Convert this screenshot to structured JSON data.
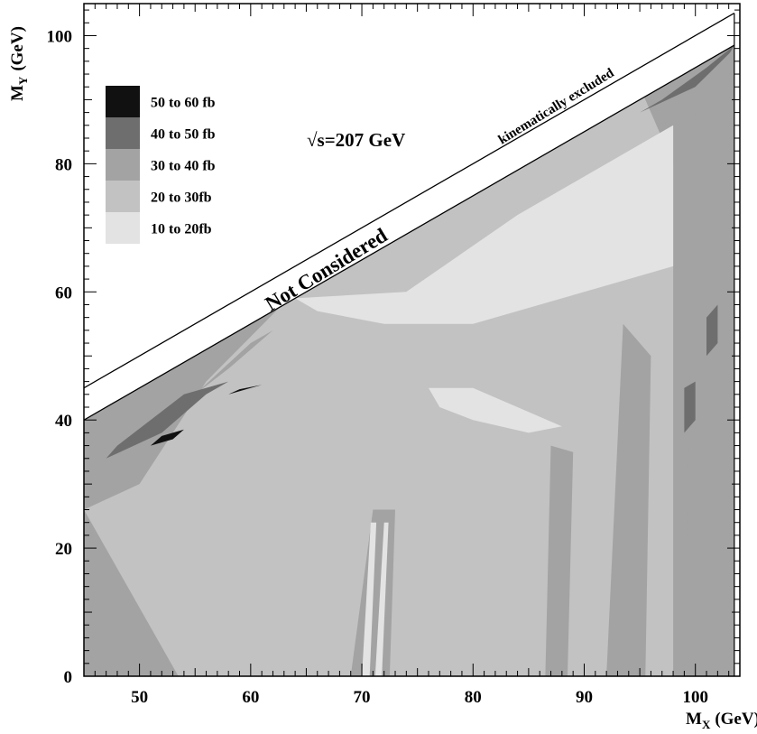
{
  "chart_data": {
    "type": "heatmap",
    "title": "",
    "xlabel_main": "M",
    "xlabel_sub": "X",
    "xlabel_unit": "(GeV)",
    "ylabel_main": "M",
    "ylabel_sub": "Y",
    "ylabel_unit": "(GeV)",
    "xlim": [
      45,
      104
    ],
    "ylim": [
      0,
      105
    ],
    "xticks": [
      50,
      60,
      70,
      80,
      90,
      100
    ],
    "yticks": [
      0,
      20,
      40,
      60,
      80,
      100
    ],
    "grid": false,
    "legend_position": "top-left",
    "legend": [
      {
        "label": "50 to 60 fb",
        "color": "#111111"
      },
      {
        "label": "40 to 50 fb",
        "color": "#6e6e6e"
      },
      {
        "label": "30 to 40 fb",
        "color": "#a3a3a3"
      },
      {
        "label": "20 to 30fb",
        "color": "#c2c2c2"
      },
      {
        "label": "10 to 20fb",
        "color": "#e3e3e3"
      }
    ],
    "annotations": {
      "energy": "√s=207 GeV",
      "not_considered": "Not Considered",
      "kinematic": "kinematically excluded"
    },
    "boundary_lines": [
      {
        "name": "kinematic-limit",
        "x": [
          45,
          103.5
        ],
        "y": [
          45,
          103.5
        ]
      },
      {
        "name": "consideration-limit",
        "x": [
          45,
          103.5
        ],
        "y": [
          40,
          98.5
        ]
      }
    ],
    "regions": [
      {
        "level": "30 to 40 fb",
        "points": [
          [
            45,
            0
          ],
          [
            103.5,
            0
          ],
          [
            103.5,
            98.5
          ],
          [
            45,
            40
          ]
        ]
      },
      {
        "level": "20 to 30fb",
        "points": [
          [
            53.5,
            0
          ],
          [
            98,
            0
          ],
          [
            98,
            80
          ],
          [
            95,
            92
          ],
          [
            80,
            80
          ],
          [
            64,
            60
          ],
          [
            56,
            46
          ],
          [
            50,
            30
          ],
          [
            45,
            26
          ]
        ]
      },
      {
        "level": "30 to 40 fb",
        "points": [
          [
            69,
            0
          ],
          [
            72.5,
            0
          ],
          [
            73,
            26
          ],
          [
            71,
            26
          ]
        ]
      },
      {
        "level": "10 to 20fb",
        "points": [
          [
            70,
            0
          ],
          [
            70.7,
            0
          ],
          [
            71.3,
            24
          ],
          [
            70.8,
            24
          ]
        ]
      },
      {
        "level": "10 to 20fb",
        "points": [
          [
            71.2,
            0
          ],
          [
            71.8,
            0
          ],
          [
            72.4,
            24
          ],
          [
            72,
            24
          ]
        ]
      },
      {
        "level": "30 to 40 fb",
        "points": [
          [
            86.5,
            0
          ],
          [
            88.5,
            0
          ],
          [
            89,
            35
          ],
          [
            87,
            36
          ]
        ]
      },
      {
        "level": "30 to 40 fb",
        "points": [
          [
            92,
            0
          ],
          [
            95.5,
            0
          ],
          [
            96,
            50
          ],
          [
            93.5,
            55
          ]
        ]
      },
      {
        "level": "10 to 20fb",
        "points": [
          [
            64,
            59
          ],
          [
            74,
            60
          ],
          [
            84,
            72
          ],
          [
            92,
            80
          ],
          [
            98,
            86
          ],
          [
            98,
            64
          ],
          [
            94,
            62
          ],
          [
            86,
            58
          ],
          [
            80,
            55
          ],
          [
            72,
            55
          ],
          [
            66,
            57
          ]
        ]
      },
      {
        "level": "10 to 20fb",
        "points": [
          [
            76,
            45
          ],
          [
            80,
            45
          ],
          [
            84,
            42
          ],
          [
            88,
            39
          ],
          [
            85,
            38
          ],
          [
            80,
            40
          ],
          [
            77,
            42
          ]
        ]
      },
      {
        "level": "30 to 40 fb",
        "points": [
          [
            47,
            36
          ],
          [
            52,
            40
          ],
          [
            58,
            48
          ],
          [
            62,
            54
          ],
          [
            60,
            52
          ],
          [
            55,
            44
          ],
          [
            50,
            37
          ]
        ]
      },
      {
        "level": "40 to 50 fb",
        "points": [
          [
            47,
            34
          ],
          [
            52,
            38
          ],
          [
            56,
            44
          ],
          [
            58,
            46
          ],
          [
            54,
            44
          ],
          [
            51,
            40
          ],
          [
            48,
            36
          ]
        ]
      },
      {
        "level": "50 to 60 fb",
        "points": [
          [
            51,
            36
          ],
          [
            53,
            37
          ],
          [
            54,
            38.5
          ],
          [
            52,
            37.5
          ]
        ]
      },
      {
        "level": "50 to 60 fb",
        "points": [
          [
            58,
            44
          ],
          [
            60,
            45
          ],
          [
            61,
            45.5
          ],
          [
            59,
            44.8
          ]
        ]
      },
      {
        "level": "40 to 50 fb",
        "points": [
          [
            95,
            88
          ],
          [
            100,
            92
          ],
          [
            103,
            97
          ],
          [
            103.5,
            98.5
          ],
          [
            101,
            95
          ],
          [
            97,
            90
          ]
        ]
      },
      {
        "level": "50 to 60 fb",
        "points": [
          [
            100.5,
            90
          ],
          [
            102.5,
            92
          ],
          [
            103,
            96
          ],
          [
            101.5,
            94
          ]
        ]
      },
      {
        "level": "30 to 40 fb",
        "points": [
          [
            99,
            0
          ],
          [
            103.5,
            0
          ],
          [
            103.5,
            98
          ],
          [
            100,
            92
          ]
        ]
      },
      {
        "level": "40 to 50 fb",
        "points": [
          [
            101,
            50
          ],
          [
            102,
            52
          ],
          [
            102,
            58
          ],
          [
            101,
            56
          ]
        ]
      },
      {
        "level": "40 to 50 fb",
        "points": [
          [
            99,
            38
          ],
          [
            100,
            40
          ],
          [
            100,
            46
          ],
          [
            99,
            45
          ]
        ]
      }
    ]
  }
}
